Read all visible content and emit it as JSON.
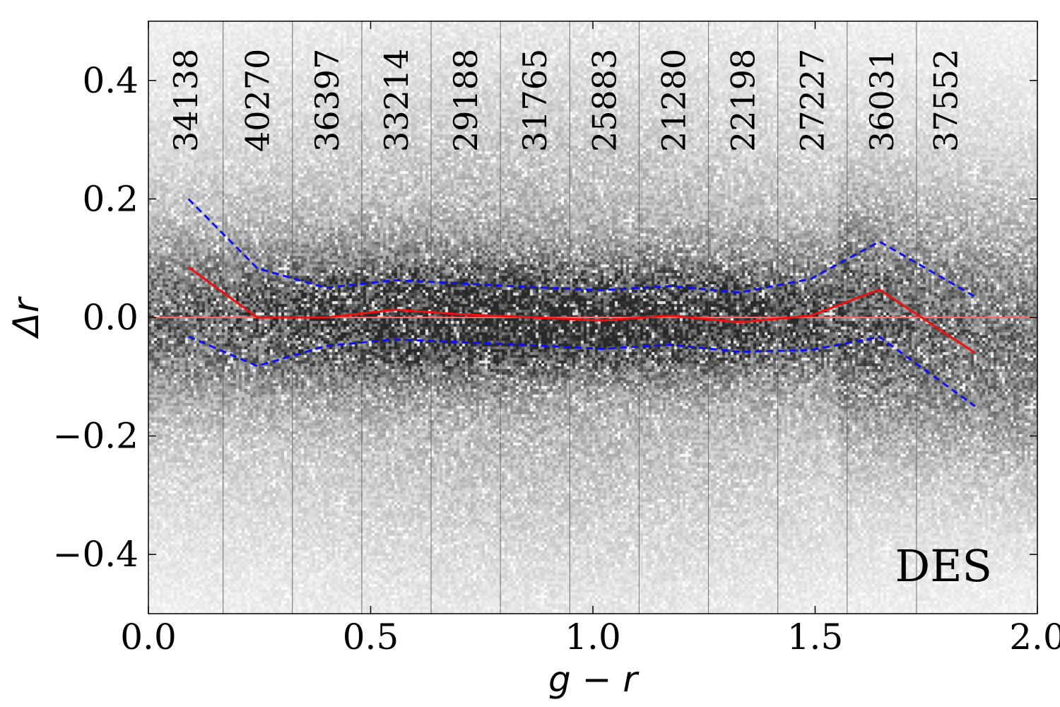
{
  "chart_data": {
    "type": "line",
    "background": "2d-density-histogram (grayscale)",
    "xlabel": "g − r",
    "ylabel": "Δr",
    "xlim": [
      0.0,
      2.0
    ],
    "ylim": [
      -0.5,
      0.5
    ],
    "x_ticks": [
      0.0,
      0.5,
      1.0,
      1.5,
      2.0
    ],
    "x_tick_labels": [
      "0.0",
      "0.5",
      "1.0",
      "1.5",
      "2.0"
    ],
    "y_ticks": [
      -0.4,
      -0.2,
      0.0,
      0.2,
      0.4
    ],
    "y_tick_labels": [
      "−0.4",
      "−0.2",
      "0.0",
      "0.2",
      "0.4"
    ],
    "bin_edges": [
      0.0,
      0.168,
      0.324,
      0.48,
      0.636,
      0.792,
      0.948,
      1.104,
      1.26,
      1.416,
      1.572,
      1.728,
      1.86
    ],
    "bin_counts": [
      "34138",
      "40270",
      "36397",
      "33214",
      "29188",
      "31765",
      "25883",
      "21280",
      "22198",
      "27227",
      "36031",
      "37552"
    ],
    "x": [
      0.09,
      0.245,
      0.4,
      0.555,
      0.71,
      0.865,
      1.02,
      1.175,
      1.33,
      1.49,
      1.645,
      1.86
    ],
    "series": [
      {
        "values": [
          0.085,
          0.0,
          0.0,
          0.013,
          0.005,
          0.0,
          -0.005,
          0.003,
          -0.008,
          0.003,
          0.047,
          -0.06
        ],
        "color": "#ee1111",
        "style": "solid"
      },
      {
        "values": [
          0.2,
          0.083,
          0.05,
          0.063,
          0.057,
          0.051,
          0.046,
          0.053,
          0.042,
          0.065,
          0.128,
          0.035
        ],
        "color": "#1111ee",
        "style": "dashed"
      },
      {
        "values": [
          -0.032,
          -0.082,
          -0.048,
          -0.037,
          -0.042,
          -0.047,
          -0.053,
          -0.046,
          -0.058,
          -0.055,
          -0.033,
          -0.15
        ],
        "color": "#1111ee",
        "style": "dashed"
      }
    ],
    "reference_line": {
      "y": 0.0,
      "color": "#ff6666"
    },
    "annotation": "DES"
  }
}
